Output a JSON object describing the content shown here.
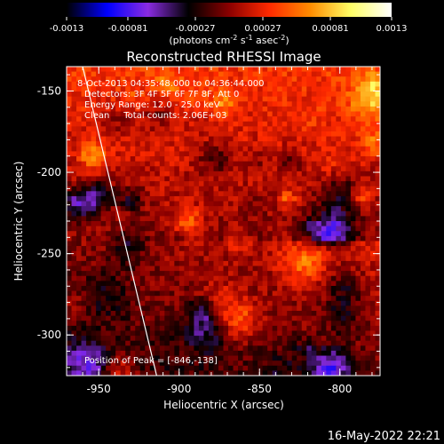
{
  "chart_data": {
    "type": "heatmap",
    "title": "Reconstructed RHESSI Image",
    "xlabel": "Heliocentric X (arcsec)",
    "ylabel": "Heliocentric Y (arcsec)",
    "xlim": [
      -970,
      -775
    ],
    "ylim": [
      -325,
      -135
    ],
    "x_ticks": [
      -950,
      -900,
      -850,
      -800
    ],
    "y_ticks": [
      -150,
      -200,
      -250,
      -300
    ],
    "x_tick_labels": [
      "-950",
      "-900",
      "-850",
      "-800"
    ],
    "y_tick_labels": [
      "-150",
      "-200",
      "-250",
      "-300"
    ],
    "colorbar": {
      "range": [
        -0.0013,
        0.0013
      ],
      "ticks": [
        -0.0013,
        -0.00081,
        -0.00027,
        0.00027,
        0.00081,
        0.0013
      ],
      "tick_labels": [
        "-0.0013",
        "-0.00081",
        "-0.00027",
        "0.00027",
        "0.00081",
        "0.0013"
      ],
      "units_label": "(photons cm",
      "units_sup1": "-2",
      "units_mid": " s",
      "units_sup2": "-1",
      "units_mid2": " asec",
      "units_sup3": "-2",
      "units_end": ")",
      "colormap": [
        "#000000",
        "#0000ff",
        "#8a2be2",
        "#000000",
        "#8b0000",
        "#ff2a00",
        "#ff8c00",
        "#ffff66",
        "#ffffff"
      ]
    },
    "annotations": [
      "8-Oct-2013 04:35:48.000 to 04:36:44.000",
      "Detectors: 3F 4F 5F 6F 7F 8F, Att 0",
      "Energy Range: 12.0 - 25.0 keV",
      "Clean     Total counts: 2.06E+03"
    ],
    "peak_label": "Position of Peak = [-846,-138]",
    "peak_position": [
      -846,
      -138
    ],
    "limb_line": [
      [
        -960,
        -135
      ],
      [
        -914,
        -325
      ]
    ],
    "map_grid": {
      "columns": 64,
      "rows": 62,
      "note_range": [
        -0.0013,
        0.0013
      ]
    },
    "map_seed": 20131008,
    "footer": "16-May-2022 22:21"
  }
}
